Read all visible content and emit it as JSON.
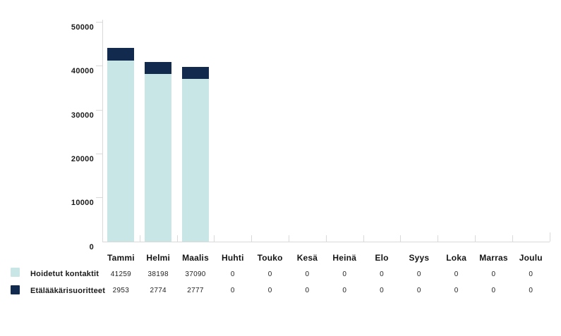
{
  "chart_data": {
    "type": "bar",
    "stacked": true,
    "title": "",
    "categories": [
      "Tammi",
      "Helmi",
      "Maalis",
      "Huhti",
      "Touko",
      "Kesä",
      "Heinä",
      "Elo",
      "Syys",
      "Loka",
      "Marras",
      "Joulu"
    ],
    "series": [
      {
        "name": "Hoidetut kontaktit",
        "color": "#c7e6e5",
        "values": [
          41259,
          38198,
          37090,
          0,
          0,
          0,
          0,
          0,
          0,
          0,
          0,
          0
        ]
      },
      {
        "name": "Etälääkärisuoritteet",
        "color": "#112a4e",
        "values": [
          2953,
          2774,
          2777,
          0,
          0,
          0,
          0,
          0,
          0,
          0,
          0,
          0
        ]
      }
    ],
    "ylim": [
      0,
      50000
    ],
    "y_ticks": [
      0,
      10000,
      20000,
      30000,
      40000,
      50000
    ],
    "y_tick_labels": [
      "0",
      "10000",
      "20000",
      "30000",
      "40000",
      "50000"
    ],
    "xlabel": "",
    "ylabel": "",
    "grid": false,
    "legend_position": "bottom-left",
    "colors": {
      "axis": "#d9d9d9",
      "text": "#1a1a1a",
      "background": "#ffffff"
    }
  }
}
